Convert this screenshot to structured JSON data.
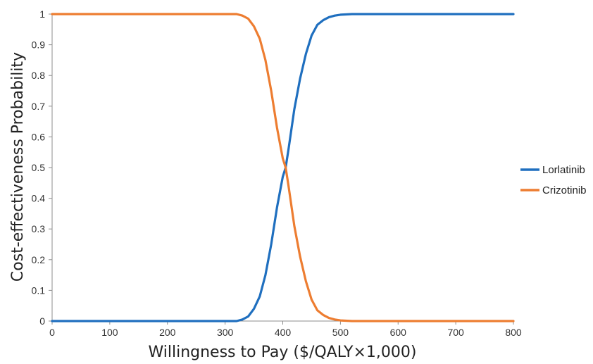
{
  "chart_data": {
    "type": "line",
    "title": "",
    "xlabel": "Willingness to Pay ($/QALY×1,000)",
    "ylabel": "Cost-effectiveness Probability",
    "xlim": [
      0,
      800
    ],
    "ylim": [
      0,
      1
    ],
    "x_ticks": [
      0,
      100,
      200,
      300,
      400,
      500,
      600,
      700,
      800
    ],
    "y_ticks": [
      0,
      0.1,
      0.2,
      0.3,
      0.4,
      0.5,
      0.6,
      0.7,
      0.8,
      0.9,
      1
    ],
    "y_tick_labels": [
      "0",
      "0.1",
      "0.2",
      "0.3",
      "0.4",
      "0.5",
      "0.6",
      "0.7",
      "0.8",
      "0.9",
      "1"
    ],
    "grid": false,
    "legend_position": "right",
    "series": [
      {
        "name": "Lorlatinib",
        "color": "#1F6FBF",
        "x": [
          0,
          320,
          330,
          340,
          350,
          360,
          370,
          380,
          390,
          400,
          405,
          410,
          420,
          430,
          440,
          450,
          460,
          470,
          480,
          490,
          500,
          520,
          540,
          600,
          700,
          800
        ],
        "y": [
          0,
          0,
          0.005,
          0.015,
          0.04,
          0.08,
          0.15,
          0.25,
          0.37,
          0.47,
          0.5,
          0.56,
          0.69,
          0.79,
          0.87,
          0.93,
          0.965,
          0.98,
          0.99,
          0.995,
          0.998,
          1,
          1,
          1,
          1,
          1
        ]
      },
      {
        "name": "Crizotinib",
        "color": "#ED7D31",
        "x": [
          0,
          320,
          330,
          340,
          350,
          360,
          370,
          380,
          390,
          400,
          405,
          410,
          420,
          430,
          440,
          450,
          460,
          470,
          480,
          490,
          500,
          520,
          540,
          600,
          700,
          800
        ],
        "y": [
          1,
          1,
          0.995,
          0.985,
          0.96,
          0.92,
          0.85,
          0.75,
          0.63,
          0.53,
          0.5,
          0.44,
          0.31,
          0.21,
          0.13,
          0.07,
          0.035,
          0.02,
          0.01,
          0.005,
          0.002,
          0,
          0,
          0,
          0,
          0
        ]
      }
    ]
  }
}
